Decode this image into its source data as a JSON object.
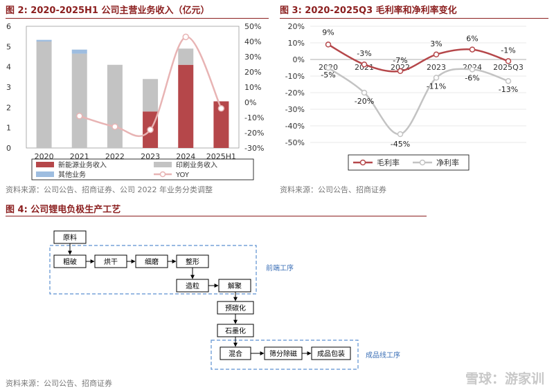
{
  "fig2": {
    "title": "图 2: 2020-2025H1 公司主营业务收入（亿元）",
    "source": "资料来源：公司公告、招商证券、公司 2022 年业务分类调整",
    "chart_data": {
      "type": "bar",
      "categories": [
        "2020",
        "2021",
        "2022",
        "2023",
        "2024",
        "2025H1"
      ],
      "left_ticks": [
        "0",
        "1",
        "2",
        "3",
        "4",
        "5",
        "6"
      ],
      "right_ticks": [
        "-30%",
        "-20%",
        "-10%",
        "0%",
        "10%",
        "20%",
        "30%",
        "40%",
        "50%"
      ],
      "ylim": [
        0,
        6
      ],
      "y2lim": [
        -30,
        50
      ],
      "series": [
        {
          "name": "新能源业务收入",
          "color": "#b5474a",
          "values": [
            0,
            0,
            0,
            1.8,
            4.1,
            2.3
          ]
        },
        {
          "name": "印刷业务收入",
          "color": "#c3c3c3",
          "values": [
            5.25,
            4.65,
            4.1,
            1.6,
            0.8,
            0
          ]
        },
        {
          "name": "其他业务",
          "color": "#9ebde0",
          "values": [
            0.08,
            0.2,
            0,
            0,
            0,
            0
          ]
        },
        {
          "name": "YOY",
          "color": "#e8b4b4",
          "values": [
            null,
            -9,
            -16,
            -18,
            43,
            -4
          ]
        }
      ]
    }
  },
  "fig3": {
    "title": "图 3: 2020-2025Q3 毛利率和净利率变化",
    "source": "资料来源：公司公告、招商证券",
    "chart_data": {
      "type": "line",
      "x": [
        "2020",
        "2021",
        "2022",
        "2023",
        "2024",
        "2025Q3"
      ],
      "y_ticks": [
        "-50%",
        "-40%",
        "-30%",
        "-20%",
        "-10%",
        "0%",
        "10%",
        "20%"
      ],
      "ylim": [
        -50,
        20
      ],
      "series": [
        {
          "name": "毛利率",
          "color": "#b5474a",
          "values": [
            9,
            -3,
            -7,
            3,
            6,
            -1
          ],
          "labels": [
            "9%",
            "-3%",
            "-7%",
            "3%",
            "6%",
            "-1%"
          ]
        },
        {
          "name": "净利率",
          "color": "#c3c3c3",
          "values": [
            -5,
            -20,
            -45,
            -11,
            -6,
            -13
          ],
          "labels": [
            "-5%",
            "-20%",
            "-45%",
            "-11%",
            "-6%",
            "-13%"
          ]
        }
      ]
    }
  },
  "fig4": {
    "title": "图 4: 公司锂电负极生产工艺",
    "source": "资料来源：公司公告、招商证券",
    "nodes": {
      "raw": "原料",
      "crush": "粗破",
      "dry": "烘干",
      "grind": "细磨",
      "shape": "整形",
      "granulate": "造粒",
      "deagglom": "解聚",
      "precarbon": "预碳化",
      "graphitize": "石墨化",
      "mix": "混合",
      "sieve": "筛分除磁",
      "pack": "成品包装"
    },
    "groups": {
      "front": "前端工序",
      "finish": "成品线工序"
    }
  },
  "watermark": "雪球：游家训"
}
